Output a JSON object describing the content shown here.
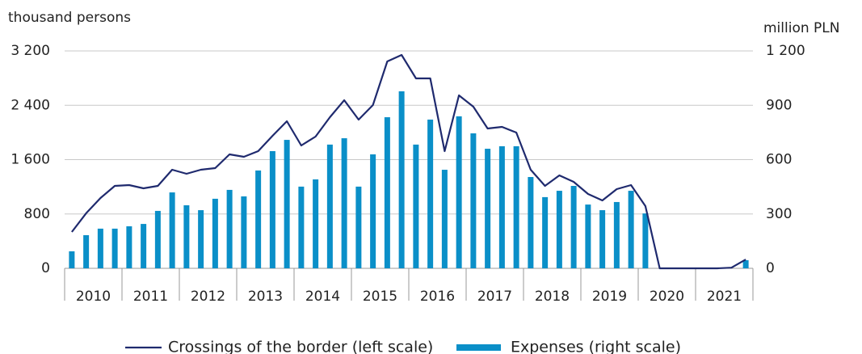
{
  "chart_data": {
    "type": "combo",
    "y_label": "thousand persons",
    "y2_label": "million PLN",
    "categories": [
      "2010",
      null,
      null,
      null,
      "2011",
      null,
      null,
      null,
      "2012",
      null,
      null,
      null,
      "2013",
      null,
      null,
      null,
      "2014",
      null,
      null,
      null,
      "2015",
      null,
      null,
      null,
      "2016",
      null,
      null,
      null,
      "2017",
      null,
      null,
      null,
      "2018",
      null,
      null,
      null,
      "2019",
      null,
      null,
      null,
      "2020",
      null,
      null,
      null,
      "2021",
      null,
      null,
      null
    ],
    "series": [
      {
        "name": "Crossings of the border (left scale)",
        "type": "line",
        "axis": "y",
        "color": "#1f2a6e",
        "values": [
          535,
          810,
          1035,
          1213,
          1225,
          1178,
          1213,
          1451,
          1392,
          1451,
          1475,
          1677,
          1642,
          1725,
          1951,
          2165,
          1808,
          1939,
          2225,
          2474,
          2189,
          2403,
          3045,
          3140,
          2795,
          2795,
          1725,
          2546,
          2379,
          2058,
          2082,
          1999,
          1451,
          1213,
          1368,
          1273,
          1094,
          999,
          1166,
          1225,
          916,
          0,
          0,
          0,
          0,
          0,
          10,
          130
        ]
      },
      {
        "name": "Expenses (right scale)",
        "type": "bar",
        "axis": "y2",
        "color": "#0a8fc8",
        "values": [
          94,
          183,
          219,
          219,
          232,
          245,
          317,
          419,
          348,
          321,
          384,
          433,
          397,
          540,
          647,
          709,
          451,
          491,
          683,
          718,
          451,
          629,
          834,
          977,
          683,
          821,
          544,
          839,
          745,
          660,
          674,
          674,
          504,
          393,
          428,
          455,
          352,
          321,
          366,
          428,
          303,
          0,
          0,
          0,
          0,
          0,
          0,
          45
        ]
      }
    ],
    "ylim": [
      0,
      3200
    ],
    "yticks": [
      0,
      800,
      {
        "value": 1600,
        "label": "1 600"
      },
      {
        "value": 2400,
        "label": "2 400"
      },
      {
        "value": 3200,
        "label": "3 200"
      }
    ],
    "y2lim": [
      0,
      1200
    ],
    "y2ticks": [
      0,
      300,
      600,
      900,
      {
        "value": 1200,
        "label": "1 200"
      }
    ],
    "grid": true,
    "legend": "bottom"
  }
}
